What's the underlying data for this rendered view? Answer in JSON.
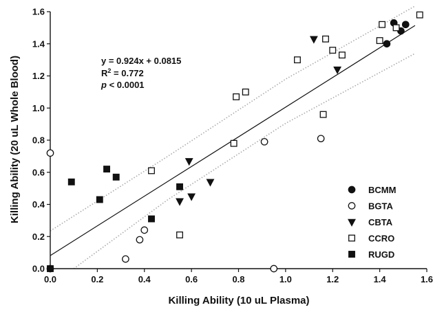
{
  "chart_data": {
    "type": "scatter",
    "xlabel": "Killing Ability (10 uL Plasma)",
    "ylabel": "Killing Ability (20 uL Whole Blood)",
    "xlim": [
      0,
      1.6
    ],
    "ylim": [
      0,
      1.6
    ],
    "xticks": [
      "0.0",
      "0.2",
      "0.4",
      "0.6",
      "0.8",
      "1.0",
      "1.2",
      "1.4",
      "1.6"
    ],
    "yticks": [
      "0.0",
      "0.2",
      "0.4",
      "0.6",
      "0.8",
      "1.0",
      "1.2",
      "1.4",
      "1.6"
    ],
    "tick_values": [
      0,
      0.2,
      0.4,
      0.6,
      0.8,
      1.0,
      1.2,
      1.4,
      1.6
    ],
    "grid": false,
    "legend_position": "bottom-right",
    "annotation": {
      "equation": "y = 0.924x + 0.0815",
      "r2_prefix": "R",
      "r2_sup": "2",
      "r2_value": " = 0.772",
      "p_symbol": "p",
      "p_value": " < 0.0001"
    },
    "regression": {
      "slope": 0.924,
      "intercept": 0.0815,
      "color": "#111111"
    },
    "confidence_band": {
      "color": "#aaaaaa",
      "upper": [
        [
          0.0,
          0.235
        ],
        [
          0.5,
          0.7
        ],
        [
          1.0,
          1.18
        ],
        [
          1.55,
          1.635
        ]
      ],
      "lower": [
        [
          0.1,
          0.0
        ],
        [
          0.5,
          0.43
        ],
        [
          1.0,
          0.905
        ],
        [
          1.55,
          1.34
        ]
      ]
    },
    "series": [
      {
        "name": "BCMM",
        "marker": "circle-filled",
        "x": [
          1.43,
          1.46,
          1.49,
          1.51
        ],
        "y": [
          1.4,
          1.53,
          1.48,
          1.52
        ]
      },
      {
        "name": "BGTA",
        "marker": "circle-open",
        "x": [
          0.0,
          0.0,
          0.32,
          0.38,
          0.4,
          0.91,
          0.95,
          1.15
        ],
        "y": [
          0.72,
          0.0,
          0.06,
          0.18,
          0.24,
          0.79,
          0.0,
          0.81
        ]
      },
      {
        "name": "CBTA",
        "marker": "triangle-down-filled",
        "x": [
          0.55,
          0.59,
          0.6,
          0.68,
          1.12,
          1.22
        ],
        "y": [
          0.42,
          0.67,
          0.45,
          0.54,
          1.43,
          1.24
        ]
      },
      {
        "name": "CCRO",
        "marker": "square-open",
        "x": [
          0.43,
          0.55,
          0.78,
          0.79,
          0.83,
          1.05,
          1.16,
          1.17,
          1.2,
          1.24,
          1.4,
          1.41,
          1.47,
          1.57
        ],
        "y": [
          0.61,
          0.21,
          0.78,
          1.07,
          1.1,
          1.3,
          0.96,
          1.43,
          1.36,
          1.33,
          1.42,
          1.52,
          1.5,
          1.58
        ]
      },
      {
        "name": "RUGD",
        "marker": "square-filled",
        "x": [
          0.0,
          0.09,
          0.21,
          0.24,
          0.28,
          0.43,
          0.55
        ],
        "y": [
          0.0,
          0.54,
          0.43,
          0.62,
          0.57,
          0.31,
          0.51
        ]
      }
    ]
  }
}
